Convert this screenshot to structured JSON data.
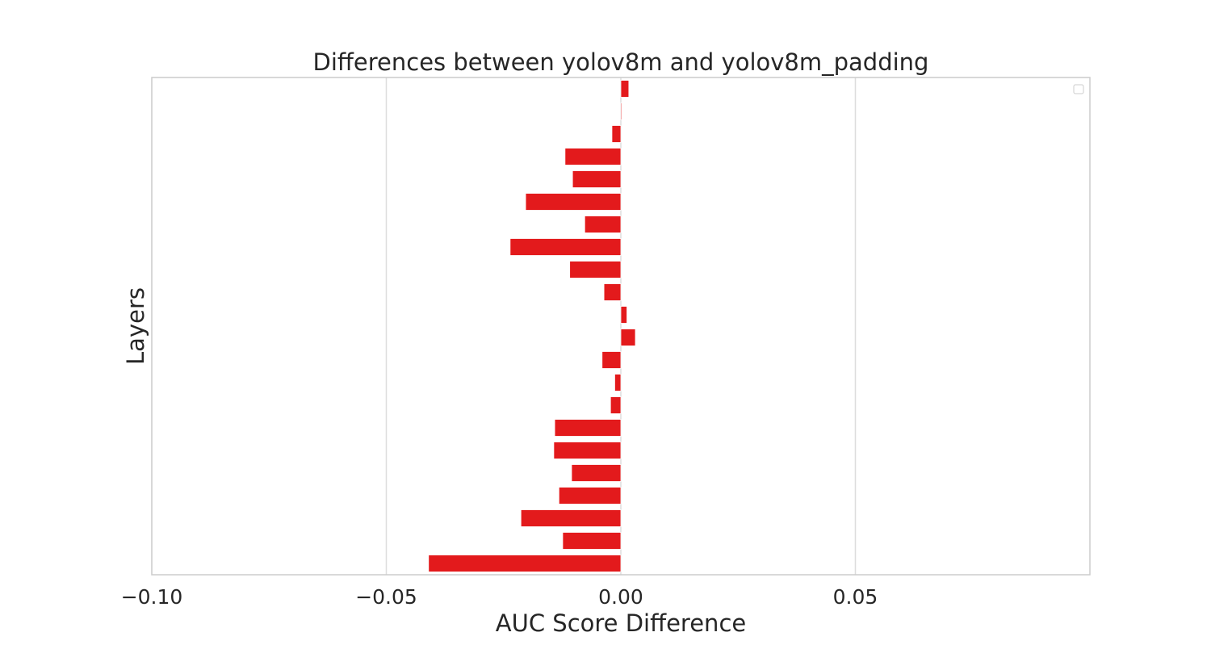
{
  "chart_data": {
    "type": "bar",
    "orientation": "horizontal",
    "title": "Differences between yolov8m and yolov8m_padding",
    "xlabel": "AUC Score Difference",
    "ylabel": "Layers",
    "xlim": [
      -0.1,
      0.1
    ],
    "xticks": [
      {
        "value": -0.1,
        "label": "−0.10"
      },
      {
        "value": -0.05,
        "label": "−0.05"
      },
      {
        "value": 0.0,
        "label": "0.00"
      },
      {
        "value": 0.05,
        "label": "0.05"
      }
    ],
    "grid": true,
    "legend": "top-right (empty)",
    "bar_color": "#e31a1c",
    "values": [
      0.0017,
      0.0002,
      -0.0019,
      -0.0119,
      -0.0103,
      -0.0203,
      -0.0077,
      -0.0236,
      -0.0109,
      -0.0036,
      0.0013,
      0.0031,
      -0.004,
      -0.0013,
      -0.0022,
      -0.0141,
      -0.0143,
      -0.0105,
      -0.0132,
      -0.0213,
      -0.0124,
      -0.041
    ]
  }
}
